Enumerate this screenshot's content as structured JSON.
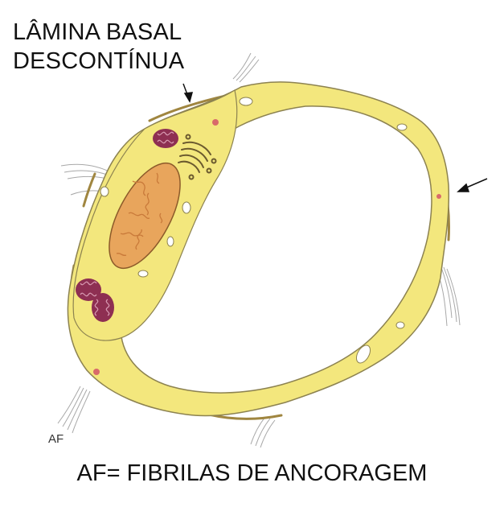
{
  "labels": {
    "top_line1": "LÂMINA BASAL",
    "top_line2": "DESCONTÍNUA",
    "af_marker": "AF",
    "bottom_caption": "AF= FIBRILAS DE ANCORAGEM"
  },
  "colors": {
    "cytoplasm": "#f3e77d",
    "cytoplasm_outline": "#8c8250",
    "nucleus": "#e8a55c",
    "chromatin": "#c97a3a",
    "mitochondria": "#8e2f52",
    "mitochondria_inner": "#d89ab2",
    "basal_lamina": "#a08640",
    "fibrils": "#a0a0a0",
    "arrow": "#111111",
    "vesicle": "#d86a6a"
  }
}
